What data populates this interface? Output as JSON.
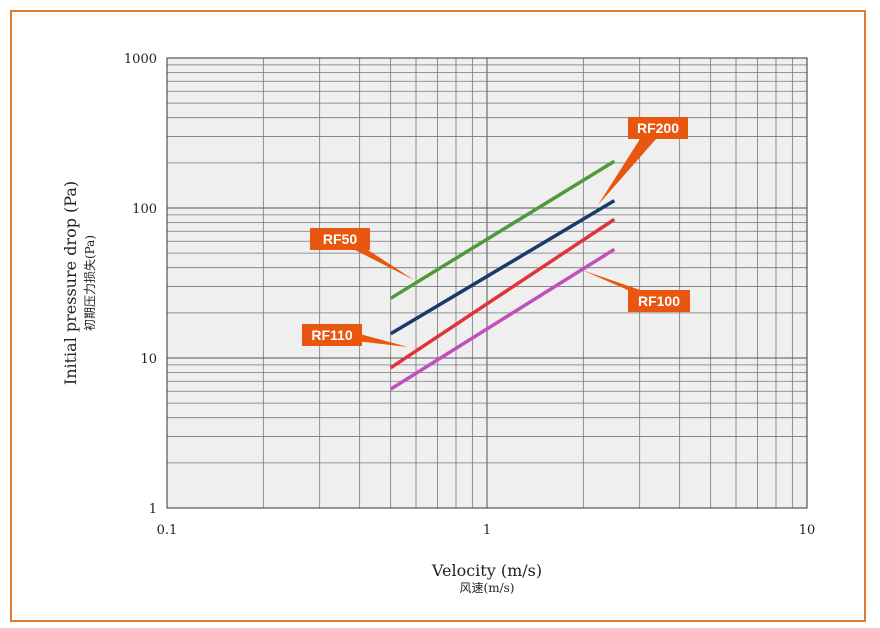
{
  "chart_data": {
    "type": "line",
    "x_scale": "log",
    "y_scale": "log",
    "xlim": [
      0.1,
      10
    ],
    "ylim": [
      1,
      1000
    ],
    "grid": true,
    "xlabel": "Velocity (m/s)",
    "xlabel_cn": "风速(m/s)",
    "ylabel": "Initial pressure drop (Pa)",
    "ylabel_cn": "初期压力损失(Pa)",
    "x_ticks": [
      "0.1",
      "1",
      "10"
    ],
    "y_ticks": [
      "1",
      "10",
      "100",
      "1000"
    ],
    "series": [
      {
        "name": "RF50",
        "color": "#4e9a3a",
        "x": [
          0.5,
          2.5
        ],
        "y": [
          25,
          205
        ]
      },
      {
        "name": "RF200",
        "color": "#1a3a6b",
        "x": [
          0.5,
          2.5
        ],
        "y": [
          14.5,
          112
        ]
      },
      {
        "name": "RF110",
        "color": "#e0343a",
        "x": [
          0.5,
          2.5
        ],
        "y": [
          8.6,
          84
        ]
      },
      {
        "name": "RF100",
        "color": "#c14fbd",
        "x": [
          0.5,
          2.5
        ],
        "y": [
          6.2,
          53
        ]
      }
    ],
    "callout_color": "#e8560f"
  }
}
